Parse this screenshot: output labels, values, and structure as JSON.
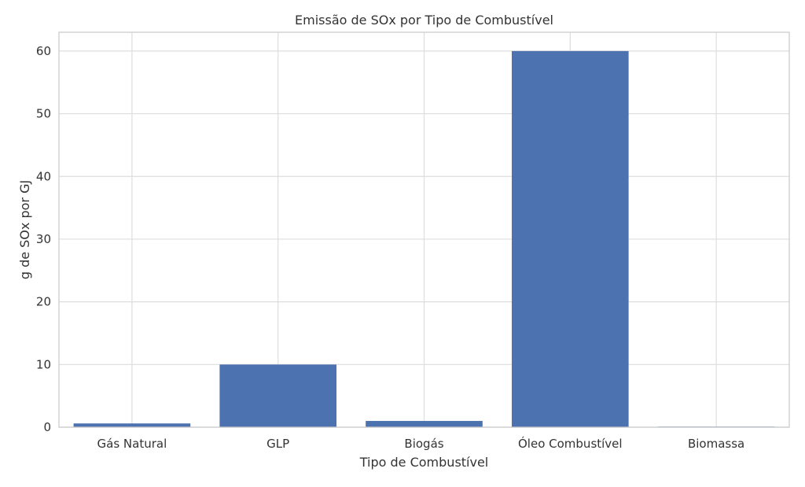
{
  "chart_data": {
    "type": "bar",
    "title": "Emissão de SOx por Tipo de Combustível",
    "xlabel": "Tipo de Combustível",
    "ylabel": "g de SOx por GJ",
    "categories": [
      "Gás Natural",
      "GLP",
      "Biogás",
      "Óleo Combustível",
      "Biomassa"
    ],
    "values": [
      0.6,
      10,
      1,
      60,
      0.1
    ],
    "ylim": [
      0,
      63
    ],
    "yticks": [
      0,
      10,
      20,
      30,
      40,
      50,
      60
    ],
    "ytick_labels": [
      "0",
      "10",
      "20",
      "30",
      "40",
      "50",
      "60"
    ],
    "grid": true,
    "bar_color": "#4c72b0",
    "grid_color": "#dddddd",
    "frame_color": "#cccccc"
  }
}
